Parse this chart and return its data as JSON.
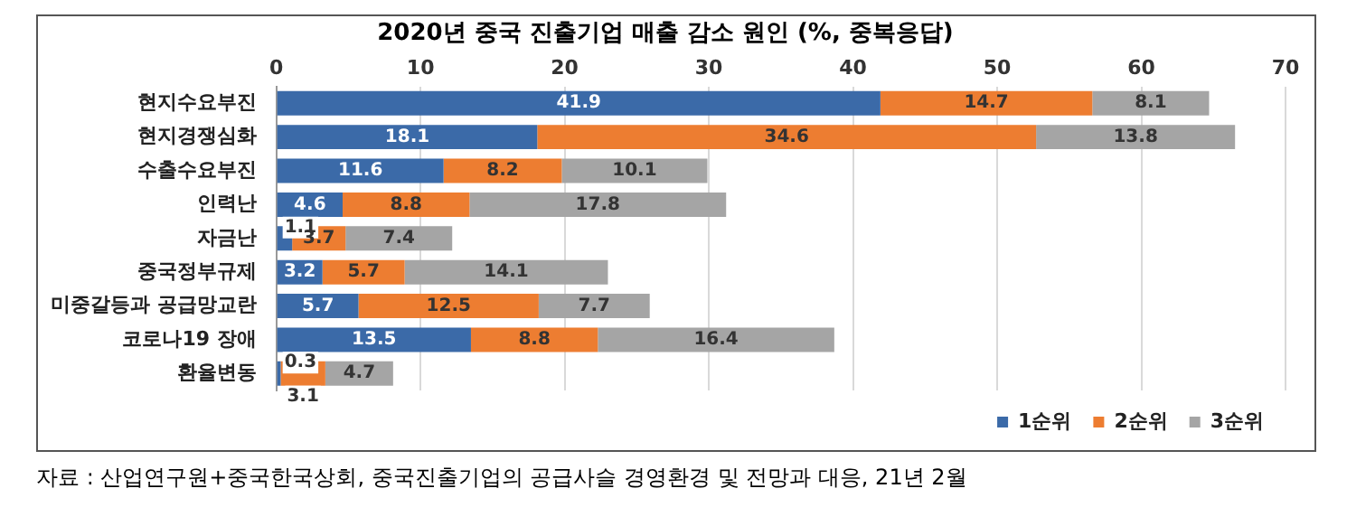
{
  "chart_data": {
    "type": "bar",
    "orientation": "horizontal",
    "stacked": true,
    "title": "2020년 중국 진출기업 매출 감소 원인 (%, 중복응답)",
    "categories": [
      "현지수요부진",
      "현지경쟁심화",
      "수출수요부진",
      "인력난",
      "자금난",
      "중국정부규제",
      "미중갈등과 공급망교란",
      "코로나19 장애",
      "환율변동"
    ],
    "series": [
      {
        "name": "1순위",
        "color": "#3b6aa8",
        "values": [
          41.9,
          18.1,
          11.6,
          4.6,
          1.1,
          3.2,
          5.7,
          13.5,
          0.3
        ]
      },
      {
        "name": "2순위",
        "color": "#ed7d31",
        "values": [
          14.7,
          34.6,
          8.2,
          8.8,
          3.7,
          5.7,
          12.5,
          8.8,
          3.1
        ]
      },
      {
        "name": "3순위",
        "color": "#a5a5a5",
        "values": [
          8.1,
          13.8,
          10.1,
          17.8,
          7.4,
          14.1,
          7.7,
          16.4,
          4.7
        ]
      }
    ],
    "xlim": [
      0,
      70
    ],
    "xticks": [
      0,
      10,
      20,
      30,
      40,
      50,
      60,
      70
    ],
    "grid": "x",
    "legend": "bottom",
    "data_labels": true,
    "annotations": [
      "자료 : 산업연구원+중국한국상회, 중국진출기업의 공급사슬 경영환경 및 전망과 대응, 21년 2월"
    ]
  }
}
